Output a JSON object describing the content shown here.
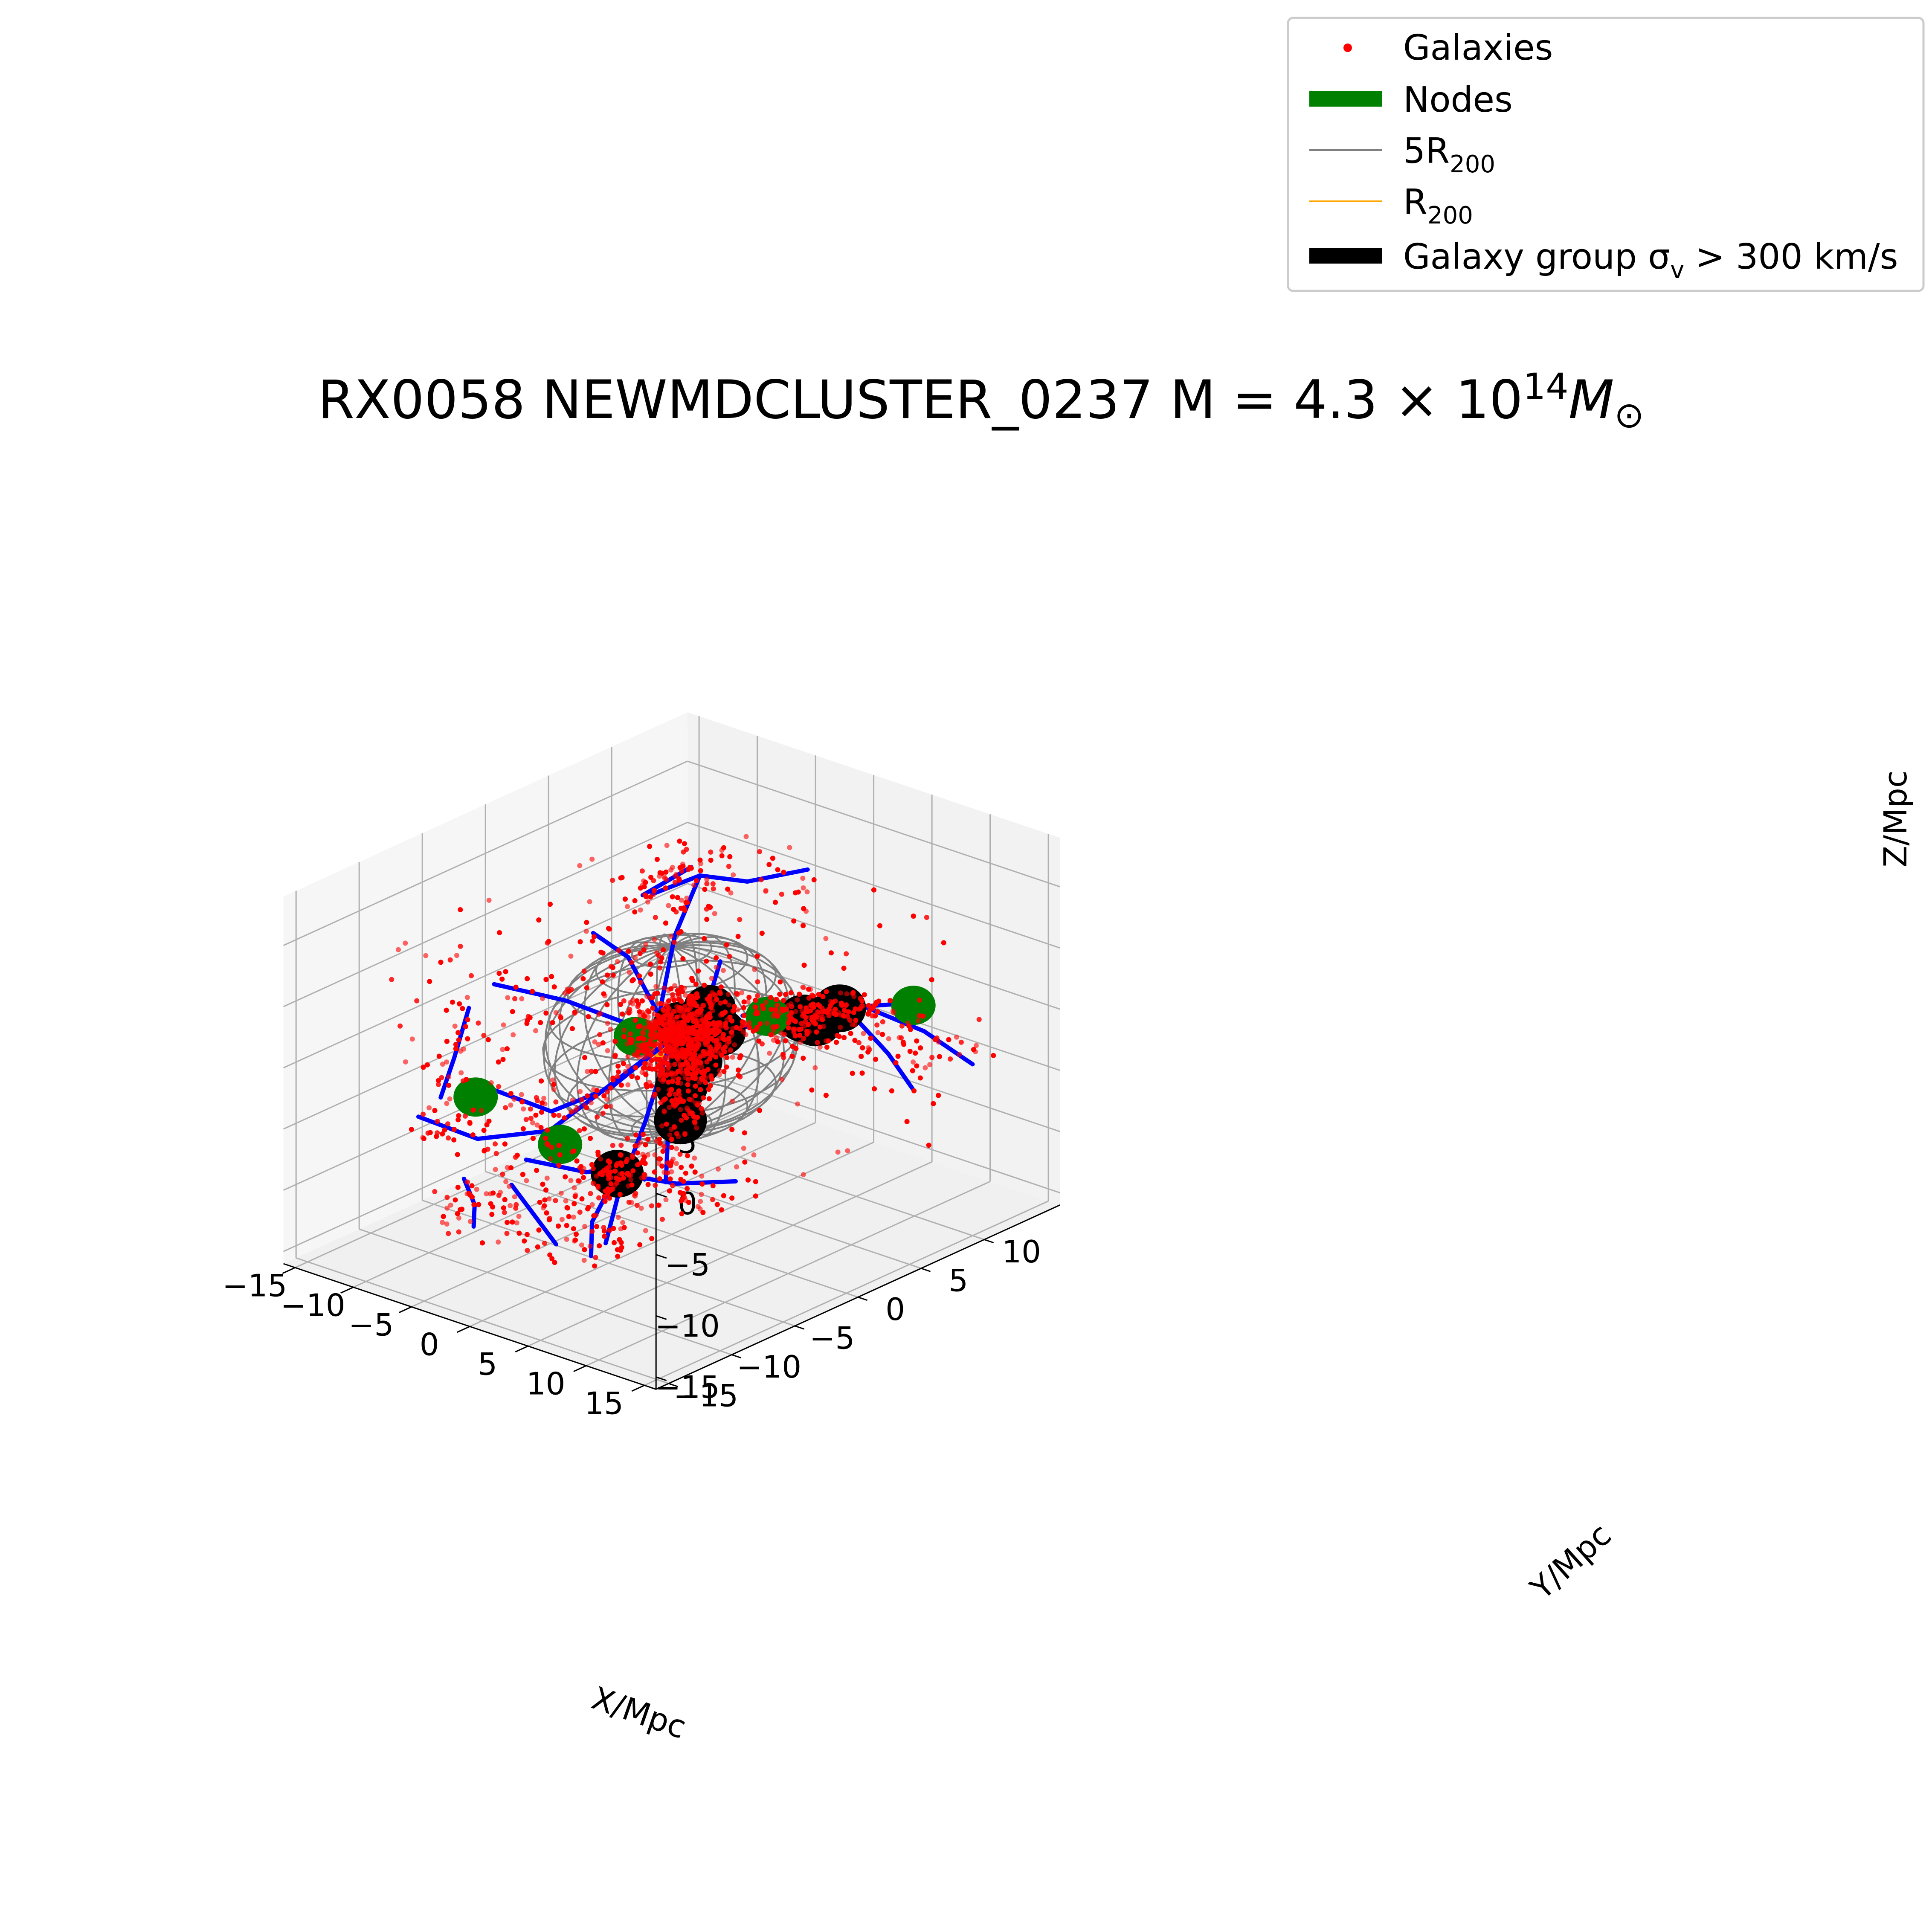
{
  "title": {
    "prefix": "RX0058  NEWMDCLUSTER_0237 M = 4.3",
    "times": "×",
    "base": "10",
    "exp": "14",
    "mass_symbol": "M",
    "sun_symbol": "⊙"
  },
  "legend": [
    {
      "label": "Galaxies",
      "sub": "",
      "tail": "",
      "marker": "dot",
      "color": "#ff0000"
    },
    {
      "label": "Nodes",
      "sub": "",
      "tail": "",
      "marker": "thick-line",
      "color": "#008000"
    },
    {
      "label": "5R",
      "sub": "200",
      "tail": "",
      "marker": "thin-line",
      "color": "#808080"
    },
    {
      "label": "R",
      "sub": "200",
      "tail": "",
      "marker": "thin-line",
      "color": "#ffa500"
    },
    {
      "label": "Galaxy group σ",
      "sub": "v",
      "tail": " > 300 km/s",
      "marker": "thick-line",
      "color": "#000000"
    }
  ],
  "chart_data": {
    "type": "scatter",
    "projection": "3d",
    "title": "RX0058  NEWMDCLUSTER_0237 M = 4.3 × 10^14 M⊙",
    "xlabel": "X/Mpc",
    "ylabel": "Y/Mpc",
    "zlabel": "Z/Mpc",
    "xlim": [
      -16,
      16
    ],
    "ylim": [
      -16,
      16
    ],
    "zlim": [
      -16,
      14
    ],
    "x_ticks": [
      "−15",
      "−10",
      "−5",
      "0",
      "5",
      "10",
      "15"
    ],
    "y_ticks": [
      "−15",
      "−10",
      "−5",
      "0",
      "5",
      "10"
    ],
    "z_ticks": [
      "−15",
      "−10",
      "−5",
      "0",
      "5",
      "10"
    ],
    "grid": true,
    "legend_position": "top-right",
    "colors": {
      "galaxies": "#ff0000",
      "nodes": "#008000",
      "filaments": "#0000ff",
      "five_r200": "#808080",
      "r200": "#ffa500",
      "groups": "#000000"
    },
    "spheres": [
      {
        "name": "5R200",
        "center": [
          0,
          0,
          0
        ],
        "radius": 7.5
      },
      {
        "name": "R200",
        "center": [
          0,
          0,
          0
        ],
        "radius": 1.5
      }
    ],
    "nodes": [
      {
        "x": -2,
        "y": -1,
        "z": 0
      },
      {
        "x": 5,
        "y": 3,
        "z": 2
      },
      {
        "x": -6,
        "y": -10,
        "z": -2
      },
      {
        "x": -2,
        "y": -7,
        "z": -6
      },
      {
        "x": 11,
        "y": 9,
        "z": 2
      }
    ],
    "groups": [
      {
        "x": 0,
        "y": 3,
        "z": 1
      },
      {
        "x": -1,
        "y": 1.5,
        "z": 0
      },
      {
        "x": 0,
        "y": 2,
        "z": -1
      },
      {
        "x": 1,
        "y": 1,
        "z": -2
      },
      {
        "x": 3,
        "y": 1,
        "z": 1
      },
      {
        "x": 7,
        "y": 4,
        "z": 2
      },
      {
        "x": 8,
        "y": 4,
        "z": 2
      },
      {
        "x": 9,
        "y": 5,
        "z": 3
      },
      {
        "x": 3,
        "y": -2,
        "z": -2
      },
      {
        "x": 4,
        "y": -3,
        "z": -4
      },
      {
        "x": 4,
        "y": -8,
        "z": -6
      }
    ],
    "filaments": [
      [
        [
          -6,
          4,
          8
        ],
        [
          -3,
          5,
          10
        ],
        [
          0,
          6,
          10
        ],
        [
          3,
          8,
          11
        ]
      ],
      [
        [
          -3,
          5,
          10
        ],
        [
          -3,
          3,
          6
        ],
        [
          -1,
          0,
          2
        ],
        [
          0,
          0,
          0
        ]
      ],
      [
        [
          -12,
          -3,
          2
        ],
        [
          -8,
          -1,
          1
        ],
        [
          -4,
          0,
          0
        ],
        [
          0,
          0,
          0
        ]
      ],
      [
        [
          -12,
          -5,
          1
        ],
        [
          -10,
          -8,
          -1
        ],
        [
          -9,
          -10,
          -3
        ]
      ],
      [
        [
          -10,
          3,
          4
        ],
        [
          -7,
          3,
          3
        ],
        [
          -4,
          2,
          1
        ],
        [
          0,
          0,
          0
        ]
      ],
      [
        [
          -9,
          6,
          6
        ],
        [
          -8,
          7,
          7
        ],
        [
          -7,
          8,
          8
        ]
      ],
      [
        [
          -10,
          -5,
          -5
        ],
        [
          -6,
          -4,
          -6
        ],
        [
          -3,
          -2,
          -4
        ],
        [
          0,
          0,
          0
        ]
      ],
      [
        [
          -12,
          -9,
          -6
        ],
        [
          -8,
          -8,
          -7
        ],
        [
          -4,
          -6,
          -6
        ],
        [
          0,
          0,
          0
        ]
      ],
      [
        [
          -7,
          -10,
          -9
        ],
        [
          -5,
          -11,
          -10
        ],
        [
          -4,
          -12,
          -11
        ]
      ],
      [
        [
          -6,
          -6,
          -9
        ],
        [
          -3,
          -4,
          -10
        ],
        [
          0,
          -3,
          -9
        ],
        [
          2,
          -4,
          -9
        ]
      ],
      [
        [
          2,
          2,
          6
        ],
        [
          2,
          1,
          3
        ],
        [
          1,
          0,
          1
        ],
        [
          0,
          0,
          0
        ]
      ],
      [
        [
          0,
          0,
          0
        ],
        [
          3,
          1,
          1
        ],
        [
          6,
          3,
          2
        ],
        [
          9,
          5,
          3
        ],
        [
          12,
          8,
          3
        ]
      ],
      [
        [
          10,
          6,
          3
        ],
        [
          13,
          8,
          1
        ],
        [
          15,
          10,
          -2
        ]
      ],
      [
        [
          9,
          6,
          2
        ],
        [
          11,
          7,
          -1
        ],
        [
          12,
          8,
          -4
        ]
      ],
      [
        [
          0,
          0,
          0
        ],
        [
          2,
          -2,
          -3
        ],
        [
          4,
          -4,
          -5
        ],
        [
          6,
          -6,
          -7
        ]
      ],
      [
        [
          4,
          -8,
          -6
        ],
        [
          4,
          -10,
          -9
        ],
        [
          5,
          -11,
          -11
        ]
      ],
      [
        [
          4,
          -8,
          -6
        ],
        [
          8,
          -7,
          -6
        ],
        [
          12,
          -6,
          -5
        ]
      ],
      [
        [
          0,
          0,
          0
        ],
        [
          1,
          -3,
          -5
        ],
        [
          2,
          -6,
          -9
        ],
        [
          3,
          -8,
          -12
        ]
      ],
      [
        [
          -4,
          -9,
          -9
        ],
        [
          -1,
          -10,
          -10
        ],
        [
          2,
          -11,
          -11
        ]
      ],
      [
        [
          5,
          1,
          3
        ],
        [
          7,
          2,
          4
        ],
        [
          9,
          2,
          3
        ]
      ]
    ],
    "galaxies": {
      "count": 2500,
      "structure": "concentrated at the cluster core, along filaments and around nodes and groups"
    }
  }
}
